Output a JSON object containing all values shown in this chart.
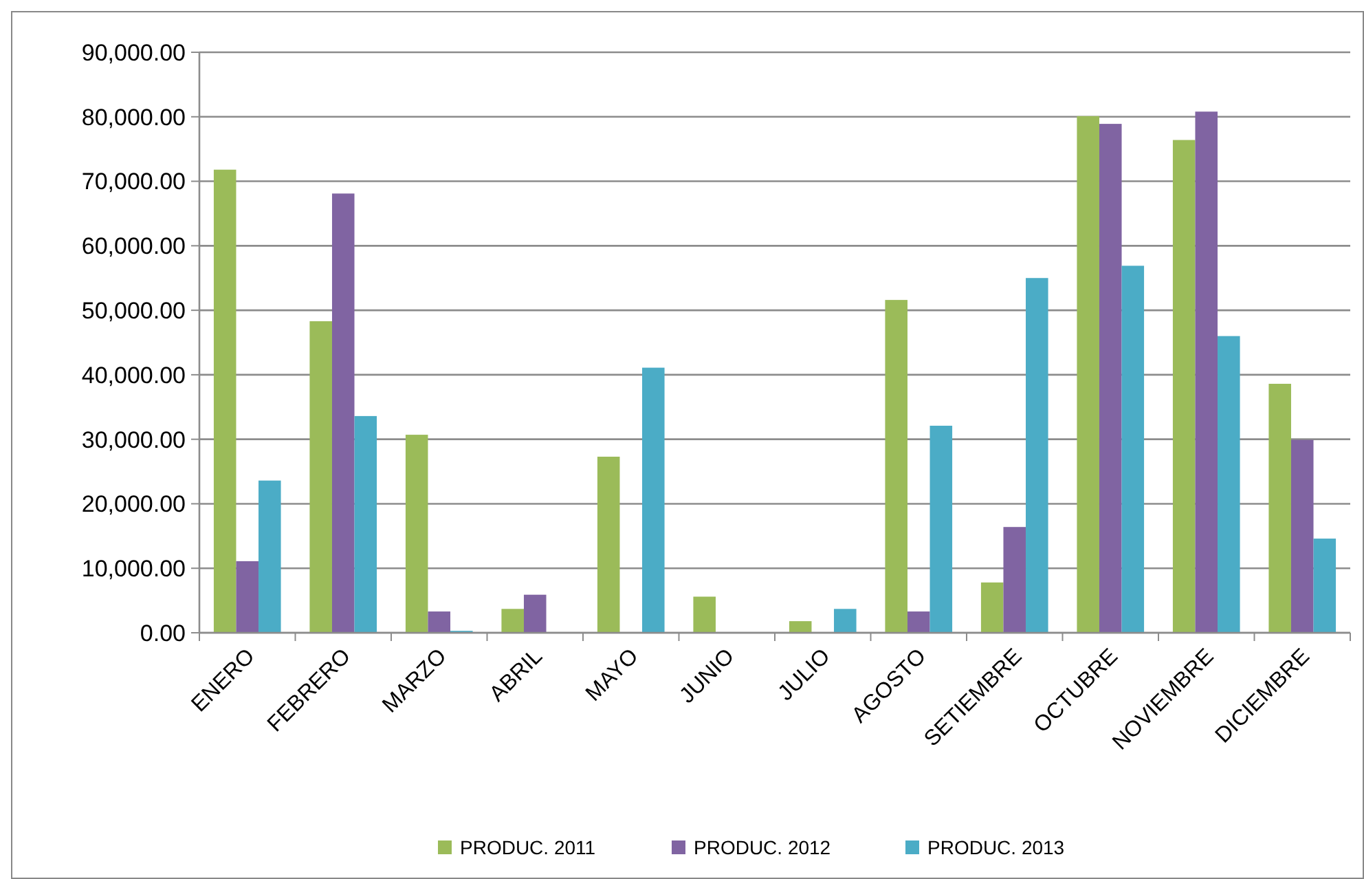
{
  "chart_data": {
    "type": "bar",
    "categories": [
      "ENERO",
      "FEBRERO",
      "MARZO",
      "ABRIL",
      "MAYO",
      "JUNIO",
      "JULIO",
      "AGOSTO",
      "SETIEMBRE",
      "OCTUBRE",
      "NOVIEMBRE",
      "DICIEMBRE"
    ],
    "series": [
      {
        "name": "PRODUC. 2011",
        "color": "#9bbb59",
        "values": [
          71800,
          48300,
          30700,
          3700,
          27300,
          5600,
          1800,
          51600,
          7800,
          80100,
          76400,
          38600
        ]
      },
      {
        "name": "PRODUC. 2012",
        "color": "#8064a2",
        "values": [
          11100,
          68100,
          3300,
          5900,
          0,
          0,
          0,
          3300,
          16400,
          78900,
          80800,
          29900
        ]
      },
      {
        "name": "PRODUC. 2013",
        "color": "#4bacc6",
        "values": [
          23600,
          33600,
          300,
          0,
          41100,
          0,
          3700,
          32100,
          55000,
          56900,
          46000,
          14600
        ]
      }
    ],
    "ylim": [
      0,
      90000
    ],
    "yticks": [
      {
        "value": 0,
        "label": "0.00"
      },
      {
        "value": 10000,
        "label": "10,000.00"
      },
      {
        "value": 20000,
        "label": "20,000.00"
      },
      {
        "value": 30000,
        "label": "30,000.00"
      },
      {
        "value": 40000,
        "label": "40,000.00"
      },
      {
        "value": 50000,
        "label": "50,000.00"
      },
      {
        "value": 60000,
        "label": "60,000.00"
      },
      {
        "value": 70000,
        "label": "70,000.00"
      },
      {
        "value": 80000,
        "label": "80,000.00"
      },
      {
        "value": 90000,
        "label": "90,000.00"
      }
    ],
    "grid": "y",
    "legend": "bottom"
  }
}
